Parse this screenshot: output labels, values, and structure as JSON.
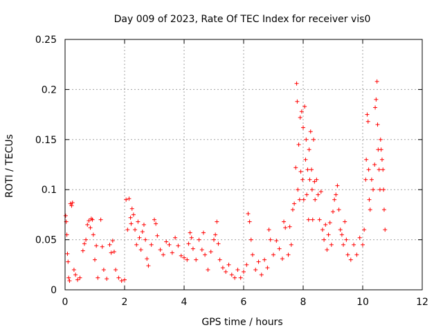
{
  "chart_data": {
    "type": "scatter",
    "title": "Day 009 of 2023, Rate Of TEC Index for receiver vis0",
    "xlabel": "GPS time / hours",
    "ylabel": "ROTI / TECUs",
    "xlim": [
      0,
      12
    ],
    "ylim": [
      0,
      0.25
    ],
    "xticks": [
      "0",
      "2",
      "4",
      "6",
      "8",
      "10",
      "12"
    ],
    "yticks": [
      "0",
      "0.05",
      "0.1",
      "0.15",
      "0.2",
      "0.25"
    ],
    "grid": true,
    "marker": "+",
    "color": "#ff0000",
    "series": [
      {
        "name": "ROTI",
        "points": [
          [
            0.02,
            0.074
          ],
          [
            0.04,
            0.068
          ],
          [
            0.06,
            0.055
          ],
          [
            0.08,
            0.036
          ],
          [
            0.1,
            0.028
          ],
          [
            0.12,
            0.012
          ],
          [
            0.15,
            0.009
          ],
          [
            0.18,
            0.086
          ],
          [
            0.22,
            0.084
          ],
          [
            0.25,
            0.087
          ],
          [
            0.3,
            0.02
          ],
          [
            0.35,
            0.015
          ],
          [
            0.42,
            0.01
          ],
          [
            0.5,
            0.012
          ],
          [
            0.6,
            0.039
          ],
          [
            0.65,
            0.046
          ],
          [
            0.7,
            0.05
          ],
          [
            0.75,
            0.065
          ],
          [
            0.8,
            0.069
          ],
          [
            0.85,
            0.062
          ],
          [
            0.88,
            0.071
          ],
          [
            0.92,
            0.07
          ],
          [
            0.95,
            0.055
          ],
          [
            1.0,
            0.03
          ],
          [
            1.05,
            0.044
          ],
          [
            1.1,
            0.012
          ],
          [
            1.2,
            0.07
          ],
          [
            1.25,
            0.043
          ],
          [
            1.3,
            0.02
          ],
          [
            1.4,
            0.011
          ],
          [
            1.5,
            0.045
          ],
          [
            1.55,
            0.037
          ],
          [
            1.6,
            0.049
          ],
          [
            1.65,
            0.038
          ],
          [
            1.7,
            0.02
          ],
          [
            1.8,
            0.012
          ],
          [
            1.9,
            0.009
          ],
          [
            2.0,
            0.01
          ],
          [
            2.05,
            0.09
          ],
          [
            2.1,
            0.06
          ],
          [
            2.15,
            0.091
          ],
          [
            2.2,
            0.072
          ],
          [
            2.22,
            0.066
          ],
          [
            2.25,
            0.081
          ],
          [
            2.3,
            0.075
          ],
          [
            2.35,
            0.06
          ],
          [
            2.4,
            0.045
          ],
          [
            2.45,
            0.068
          ],
          [
            2.5,
            0.052
          ],
          [
            2.55,
            0.04
          ],
          [
            2.6,
            0.058
          ],
          [
            2.65,
            0.065
          ],
          [
            2.7,
            0.05
          ],
          [
            2.75,
            0.031
          ],
          [
            2.8,
            0.024
          ],
          [
            2.9,
            0.045
          ],
          [
            3.0,
            0.07
          ],
          [
            3.05,
            0.066
          ],
          [
            3.1,
            0.054
          ],
          [
            3.2,
            0.04
          ],
          [
            3.3,
            0.035
          ],
          [
            3.4,
            0.048
          ],
          [
            3.5,
            0.045
          ],
          [
            3.6,
            0.037
          ],
          [
            3.7,
            0.052
          ],
          [
            3.8,
            0.044
          ],
          [
            3.9,
            0.034
          ],
          [
            4.0,
            0.032
          ],
          [
            4.1,
            0.03
          ],
          [
            4.15,
            0.046
          ],
          [
            4.2,
            0.057
          ],
          [
            4.25,
            0.052
          ],
          [
            4.3,
            0.041
          ],
          [
            4.4,
            0.03
          ],
          [
            4.5,
            0.05
          ],
          [
            4.6,
            0.04
          ],
          [
            4.65,
            0.057
          ],
          [
            4.7,
            0.035
          ],
          [
            4.8,
            0.02
          ],
          [
            4.9,
            0.038
          ],
          [
            5.0,
            0.05
          ],
          [
            5.05,
            0.055
          ],
          [
            5.1,
            0.068
          ],
          [
            5.15,
            0.046
          ],
          [
            5.2,
            0.03
          ],
          [
            5.3,
            0.022
          ],
          [
            5.4,
            0.018
          ],
          [
            5.5,
            0.025
          ],
          [
            5.6,
            0.015
          ],
          [
            5.7,
            0.012
          ],
          [
            5.8,
            0.02
          ],
          [
            5.9,
            0.012
          ],
          [
            6.0,
            0.018
          ],
          [
            6.1,
            0.025
          ],
          [
            6.15,
            0.076
          ],
          [
            6.2,
            0.068
          ],
          [
            6.25,
            0.05
          ],
          [
            6.3,
            0.035
          ],
          [
            6.4,
            0.02
          ],
          [
            6.5,
            0.028
          ],
          [
            6.6,
            0.015
          ],
          [
            6.7,
            0.03
          ],
          [
            6.8,
            0.022
          ],
          [
            6.85,
            0.06
          ],
          [
            6.9,
            0.05
          ],
          [
            7.0,
            0.035
          ],
          [
            7.1,
            0.049
          ],
          [
            7.2,
            0.041
          ],
          [
            7.3,
            0.031
          ],
          [
            7.35,
            0.068
          ],
          [
            7.4,
            0.062
          ],
          [
            7.5,
            0.035
          ],
          [
            7.55,
            0.063
          ],
          [
            7.6,
            0.045
          ],
          [
            7.65,
            0.08
          ],
          [
            7.7,
            0.086
          ],
          [
            7.75,
            0.122
          ],
          [
            7.78,
            0.206
          ],
          [
            7.8,
            0.188
          ],
          [
            7.82,
            0.1
          ],
          [
            7.85,
            0.145
          ],
          [
            7.88,
            0.09
          ],
          [
            7.9,
            0.172
          ],
          [
            7.92,
            0.118
          ],
          [
            7.95,
            0.178
          ],
          [
            7.98,
            0.11
          ],
          [
            8.0,
            0.162
          ],
          [
            8.02,
            0.09
          ],
          [
            8.05,
            0.183
          ],
          [
            8.08,
            0.13
          ],
          [
            8.1,
            0.15
          ],
          [
            8.12,
            0.095
          ],
          [
            8.15,
            0.12
          ],
          [
            8.18,
            0.07
          ],
          [
            8.2,
            0.14
          ],
          [
            8.22,
            0.11
          ],
          [
            8.25,
            0.158
          ],
          [
            8.28,
            0.12
          ],
          [
            8.3,
            0.1
          ],
          [
            8.32,
            0.07
          ],
          [
            8.35,
            0.15
          ],
          [
            8.38,
            0.108
          ],
          [
            8.4,
            0.09
          ],
          [
            8.45,
            0.11
          ],
          [
            8.5,
            0.095
          ],
          [
            8.55,
            0.07
          ],
          [
            8.6,
            0.098
          ],
          [
            8.65,
            0.06
          ],
          [
            8.7,
            0.05
          ],
          [
            8.75,
            0.065
          ],
          [
            8.8,
            0.04
          ],
          [
            8.85,
            0.055
          ],
          [
            8.9,
            0.067
          ],
          [
            8.95,
            0.045
          ],
          [
            9.0,
            0.078
          ],
          [
            9.05,
            0.09
          ],
          [
            9.1,
            0.095
          ],
          [
            9.15,
            0.104
          ],
          [
            9.2,
            0.08
          ],
          [
            9.25,
            0.06
          ],
          [
            9.3,
            0.055
          ],
          [
            9.35,
            0.045
          ],
          [
            9.4,
            0.068
          ],
          [
            9.45,
            0.05
          ],
          [
            9.5,
            0.035
          ],
          [
            9.6,
            0.03
          ],
          [
            9.7,
            0.045
          ],
          [
            9.8,
            0.035
          ],
          [
            9.9,
            0.052
          ],
          [
            10.0,
            0.045
          ],
          [
            10.05,
            0.06
          ],
          [
            10.1,
            0.11
          ],
          [
            10.12,
            0.13
          ],
          [
            10.15,
            0.175
          ],
          [
            10.18,
            0.168
          ],
          [
            10.2,
            0.12
          ],
          [
            10.22,
            0.09
          ],
          [
            10.25,
            0.08
          ],
          [
            10.3,
            0.11
          ],
          [
            10.35,
            0.1
          ],
          [
            10.4,
            0.125
          ],
          [
            10.42,
            0.182
          ],
          [
            10.45,
            0.19
          ],
          [
            10.48,
            0.208
          ],
          [
            10.5,
            0.165
          ],
          [
            10.52,
            0.14
          ],
          [
            10.55,
            0.12
          ],
          [
            10.58,
            0.1
          ],
          [
            10.6,
            0.15
          ],
          [
            10.62,
            0.14
          ],
          [
            10.65,
            0.13
          ],
          [
            10.68,
            0.12
          ],
          [
            10.7,
            0.1
          ],
          [
            10.72,
            0.08
          ],
          [
            10.75,
            0.06
          ]
        ]
      }
    ]
  }
}
